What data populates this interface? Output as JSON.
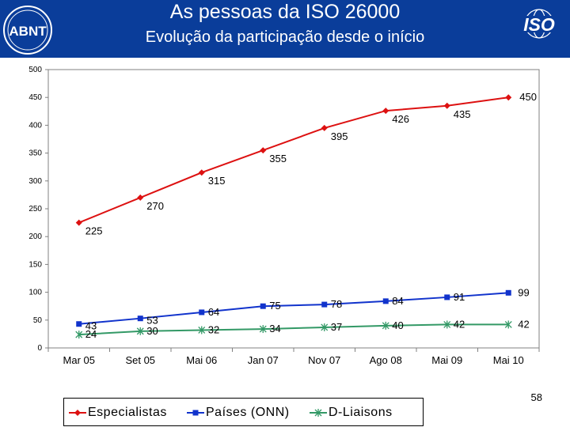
{
  "header": {
    "title": "As pessoas da ISO 26000",
    "subtitle": "Evolução da participação desde o início",
    "logo_left_text": "ABNT",
    "logo_right_text": "ISO"
  },
  "page_number": "58",
  "colors": {
    "header_bg": "#0a3d9a",
    "especialistas": "#dd1111",
    "paises": "#1133cc",
    "liaisons": "#339966"
  },
  "chart_data": {
    "type": "line",
    "title": "",
    "xlabel": "",
    "ylabel": "",
    "categories": [
      "Mar 05",
      "Set 05",
      "Mai 06",
      "Jan  07",
      "Nov 07",
      "Ago 08",
      "Mai 09",
      "Mai 10"
    ],
    "ylim": [
      0,
      500
    ],
    "yticks": [
      0,
      50,
      100,
      150,
      200,
      250,
      300,
      350,
      400,
      450,
      500
    ],
    "grid": false,
    "legend_position": "bottom",
    "series": [
      {
        "name": "Especialistas",
        "marker": "diamond",
        "color": "#dd1111",
        "values": [
          225,
          270,
          315,
          355,
          395,
          426,
          435,
          450
        ]
      },
      {
        "name": "Países (ONN)",
        "marker": "square",
        "color": "#1133cc",
        "values": [
          43,
          53,
          64,
          75,
          78,
          84,
          91,
          99
        ]
      },
      {
        "name": "D-Liaisons",
        "marker": "asterisk",
        "color": "#339966",
        "values": [
          24,
          30,
          32,
          34,
          37,
          40,
          42,
          42
        ]
      }
    ]
  }
}
